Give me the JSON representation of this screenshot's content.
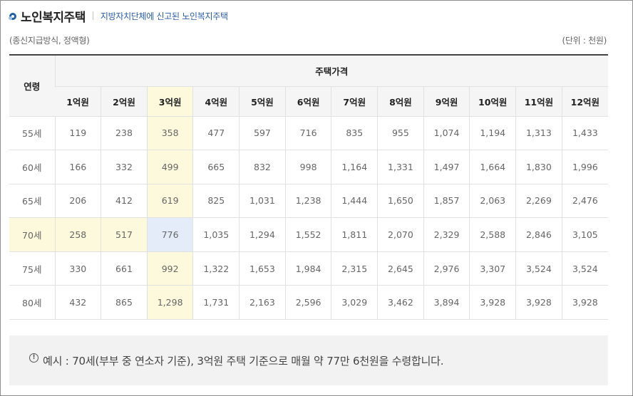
{
  "header": {
    "title": "노인복지주택",
    "subtitle": "지방자치단체에 신고된 노인복지주택"
  },
  "meta": {
    "left": "(종신지급방식, 정액형)",
    "right": "(단위 : 천원)"
  },
  "table": {
    "age_header": "연령",
    "price_header": "주택가격",
    "columns": [
      "1억원",
      "2억원",
      "3억원",
      "4억원",
      "5억원",
      "6억원",
      "7억원",
      "8억원",
      "9억원",
      "10억원",
      "11억원",
      "12억원"
    ],
    "rows": [
      {
        "age": "55세",
        "values": [
          "119",
          "238",
          "358",
          "477",
          "597",
          "716",
          "835",
          "955",
          "1,074",
          "1,194",
          "1,313",
          "1,433"
        ]
      },
      {
        "age": "60세",
        "values": [
          "166",
          "332",
          "499",
          "665",
          "832",
          "998",
          "1,164",
          "1,331",
          "1,497",
          "1,664",
          "1,830",
          "1,996"
        ]
      },
      {
        "age": "65세",
        "values": [
          "206",
          "412",
          "619",
          "825",
          "1,031",
          "1,238",
          "1,444",
          "1,650",
          "1,857",
          "2,063",
          "2,269",
          "2,476"
        ]
      },
      {
        "age": "70세",
        "values": [
          "258",
          "517",
          "776",
          "1,035",
          "1,294",
          "1,552",
          "1,811",
          "2,070",
          "2,329",
          "2,588",
          "2,846",
          "3,105"
        ]
      },
      {
        "age": "75세",
        "values": [
          "330",
          "661",
          "992",
          "1,322",
          "1,653",
          "1,984",
          "2,315",
          "2,645",
          "2,976",
          "3,307",
          "3,524",
          "3,524"
        ]
      },
      {
        "age": "80세",
        "values": [
          "432",
          "865",
          "1,298",
          "1,731",
          "2,163",
          "2,596",
          "3,029",
          "3,462",
          "3,894",
          "3,928",
          "3,928",
          "3,928"
        ]
      }
    ]
  },
  "note": {
    "icon": "!",
    "text": "예시 : 70세(부부 중 연소자 기준), 3억원 주택 기준으로 매월 약 77만 6천원을 수령합니다."
  },
  "colors": {
    "title_icon": "#1f5fa8",
    "subtitle": "#2a5ea7",
    "highlight": "#fcf9dd",
    "selected_cell": "#e4ecf9"
  }
}
